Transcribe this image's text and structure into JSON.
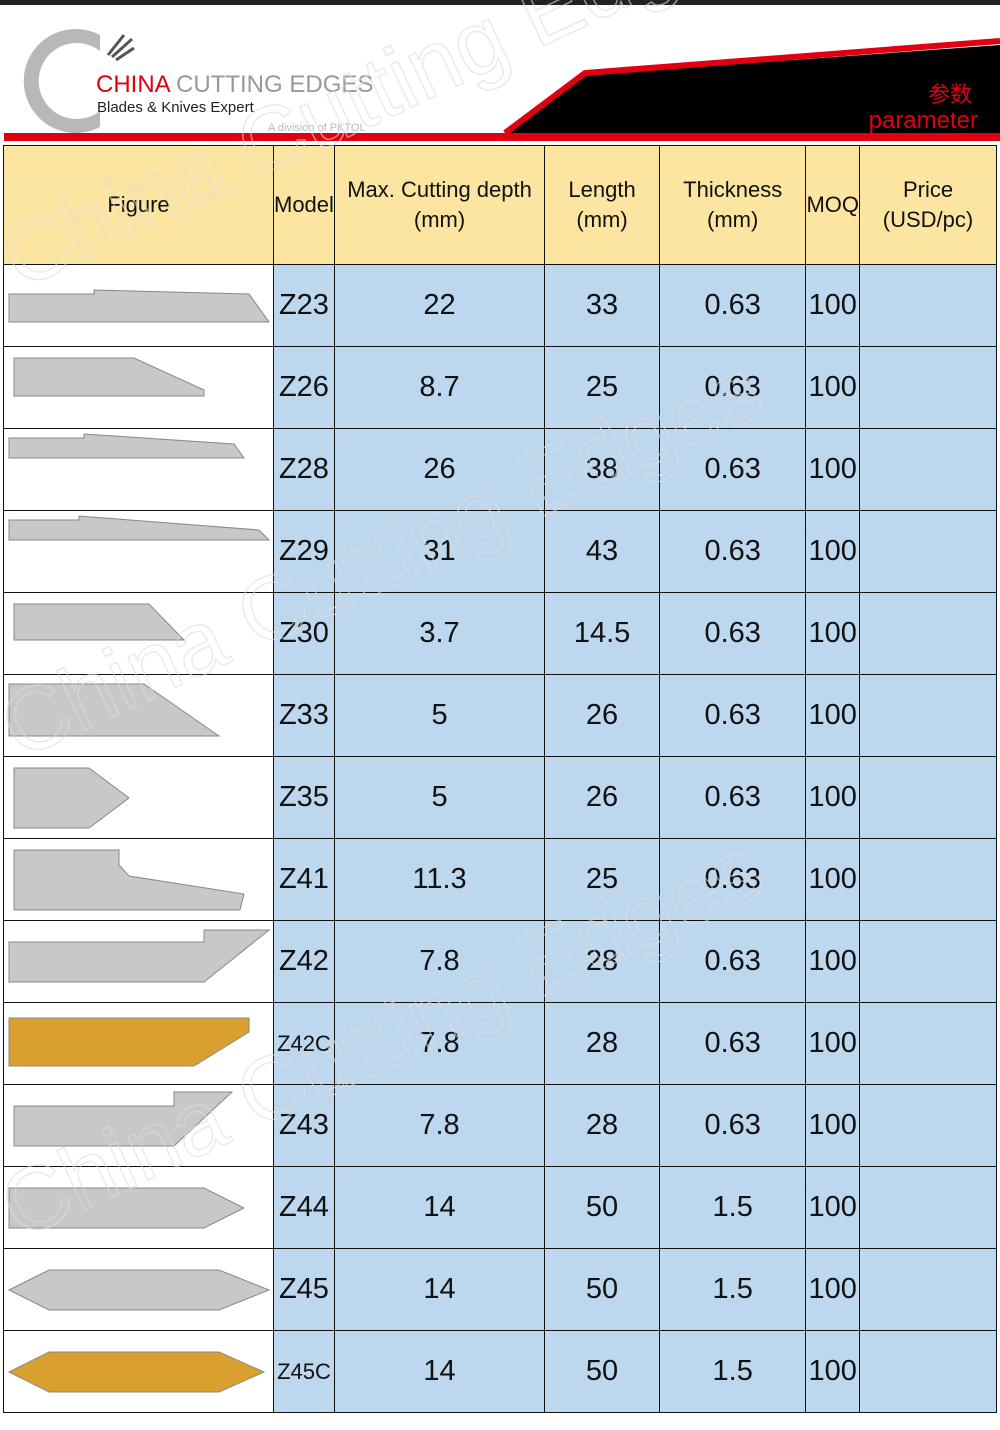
{
  "header": {
    "brand_red": "CHINA",
    "brand_gray": "CUTTING EDGES",
    "tagline": "Blades & Knives Expert",
    "division": "A division of PKTOL",
    "title_cn": "参数",
    "title_en": "parameter",
    "watermark": "China Cutting Edges"
  },
  "colors": {
    "accent_red": "#e00010",
    "header_bg": "#fce5a0",
    "cell_bg": "#bdd7ee",
    "silver": "#c8c8c8",
    "gold": "#d9a030"
  },
  "table": {
    "columns": [
      "Figure",
      "Model",
      "Max. Cutting depth  (mm)",
      "Length (mm)",
      "Thickness (mm)",
      "MOQ",
      "Price (USD/pc)"
    ],
    "rows": [
      {
        "model": "Z23",
        "depth": "22",
        "length": "33",
        "thickness": "0.63",
        "moq": "100",
        "price": "",
        "finish": "silver"
      },
      {
        "model": "Z26",
        "depth": "8.7",
        "length": "25",
        "thickness": "0.63",
        "moq": "100",
        "price": "",
        "finish": "silver"
      },
      {
        "model": "Z28",
        "depth": "26",
        "length": "38",
        "thickness": "0.63",
        "moq": "100",
        "price": "",
        "finish": "silver"
      },
      {
        "model": "Z29",
        "depth": "31",
        "length": "43",
        "thickness": "0.63",
        "moq": "100",
        "price": "",
        "finish": "silver"
      },
      {
        "model": "Z30",
        "depth": "3.7",
        "length": "14.5",
        "thickness": "0.63",
        "moq": "100",
        "price": "",
        "finish": "silver"
      },
      {
        "model": "Z33",
        "depth": "5",
        "length": "26",
        "thickness": "0.63",
        "moq": "100",
        "price": "",
        "finish": "silver"
      },
      {
        "model": "Z35",
        "depth": "5",
        "length": "26",
        "thickness": "0.63",
        "moq": "100",
        "price": "",
        "finish": "silver"
      },
      {
        "model": "Z41",
        "depth": "11.3",
        "length": "25",
        "thickness": "0.63",
        "moq": "100",
        "price": "",
        "finish": "silver"
      },
      {
        "model": "Z42",
        "depth": "7.8",
        "length": "28",
        "thickness": "0.63",
        "moq": "100",
        "price": "",
        "finish": "silver"
      },
      {
        "model": "Z42C",
        "depth": "7.8",
        "length": "28",
        "thickness": "0.63",
        "moq": "100",
        "price": "",
        "finish": "gold"
      },
      {
        "model": "Z43",
        "depth": "7.8",
        "length": "28",
        "thickness": "0.63",
        "moq": "100",
        "price": "",
        "finish": "silver"
      },
      {
        "model": "Z44",
        "depth": "14",
        "length": "50",
        "thickness": "1.5",
        "moq": "100",
        "price": "",
        "finish": "silver"
      },
      {
        "model": "Z45",
        "depth": "14",
        "length": "50",
        "thickness": "1.5",
        "moq": "100",
        "price": "",
        "finish": "silver"
      },
      {
        "model": "Z45C",
        "depth": "14",
        "length": "50",
        "thickness": "1.5",
        "moq": "100",
        "price": "",
        "finish": "gold"
      }
    ]
  }
}
